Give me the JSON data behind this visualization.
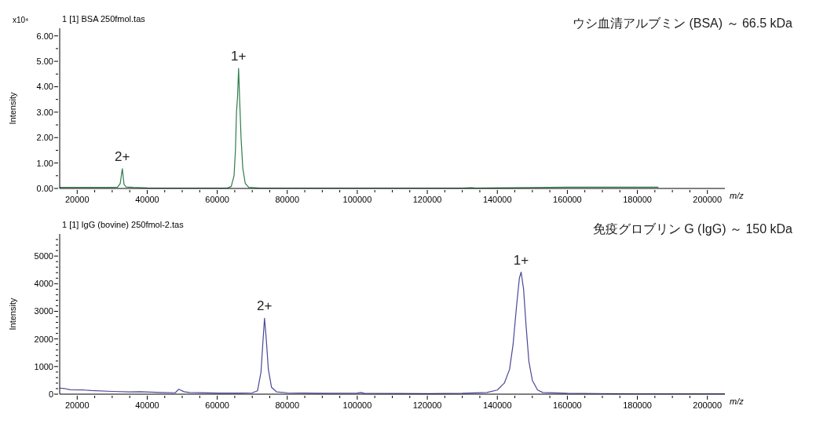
{
  "chart_data": [
    {
      "type": "line",
      "title": "1 [1] BSA 250fmol.tas",
      "xlabel": "m/z",
      "ylabel": "Intensity",
      "annotations": [
        "x10⁴",
        "ウシ血清アルブミン (BSA) ～ 66.5 kDa",
        {
          "text": "2+",
          "x": 32900,
          "y": 0.78
        },
        {
          "text": "1+",
          "x": 66100,
          "y": 4.72
        }
      ],
      "xlim": [
        15000,
        205000
      ],
      "ylim": [
        0,
        6.3
      ],
      "xticks": [
        20000,
        {
          "value": 25000,
          "label": null
        },
        {
          "value": 30000,
          "label": null
        },
        {
          "value": 35000,
          "label": null
        },
        40000,
        {
          "value": 45000,
          "label": null
        },
        {
          "value": 50000,
          "label": null
        },
        {
          "value": 55000,
          "label": null
        },
        60000,
        {
          "value": 65000,
          "label": null
        },
        {
          "value": 70000,
          "label": null
        },
        {
          "value": 75000,
          "label": null
        },
        80000,
        {
          "value": 85000,
          "label": null
        },
        {
          "value": 90000,
          "label": null
        },
        {
          "value": 95000,
          "label": null
        },
        100000,
        {
          "value": 105000,
          "label": null
        },
        {
          "value": 110000,
          "label": null
        },
        {
          "value": 115000,
          "label": null
        },
        120000,
        {
          "value": 125000,
          "label": null
        },
        {
          "value": 130000,
          "label": null
        },
        {
          "value": 135000,
          "label": null
        },
        140000,
        {
          "value": 145000,
          "label": null
        },
        {
          "value": 150000,
          "label": null
        },
        {
          "value": 155000,
          "label": null
        },
        160000,
        {
          "value": 165000,
          "label": null
        },
        {
          "value": 170000,
          "label": null
        },
        {
          "value": 175000,
          "label": null
        },
        180000,
        {
          "value": 185000,
          "label": null
        },
        {
          "value": 190000,
          "label": null
        },
        {
          "value": 195000,
          "label": null
        },
        200000
      ],
      "yticks": [
        {
          "value": 0,
          "label": "0.00"
        },
        {
          "value": 0.5,
          "label": null
        },
        {
          "value": 1,
          "label": "1.00"
        },
        {
          "value": 1.5,
          "label": null
        },
        {
          "value": 2,
          "label": "2.00"
        },
        {
          "value": 2.5,
          "label": null
        },
        {
          "value": 3,
          "label": "3.00"
        },
        {
          "value": 3.5,
          "label": null
        },
        {
          "value": 4,
          "label": "4.00"
        },
        {
          "value": 4.5,
          "label": null
        },
        {
          "value": 5,
          "label": "5.00"
        },
        {
          "value": 5.5,
          "label": null
        },
        {
          "value": 6,
          "label": "6.00"
        }
      ],
      "marker": "none",
      "line_style": "solid",
      "series": [
        {
          "color": "#2e7d4a",
          "x": [
            15000,
            20000,
            25000,
            30000,
            31500,
            32300,
            32700,
            32900,
            33100,
            33400,
            34000,
            36000,
            40000,
            50000,
            60000,
            63000,
            64000,
            64800,
            65200,
            65500,
            65800,
            66100,
            66400,
            66800,
            67300,
            68000,
            69000,
            72000,
            100000,
            130000,
            132500,
            134000,
            160000,
            186000
          ],
          "values": [
            0.04,
            0.04,
            0.04,
            0.04,
            0.05,
            0.2,
            0.6,
            0.78,
            0.5,
            0.15,
            0.06,
            0.04,
            0.02,
            0.01,
            0.01,
            0.02,
            0.08,
            0.5,
            1.5,
            3.0,
            3.6,
            4.72,
            3.5,
            2.0,
            0.8,
            0.2,
            0.04,
            0.01,
            0.01,
            0.01,
            0.03,
            0.01,
            0.05,
            0.05
          ]
        }
      ]
    },
    {
      "type": "line",
      "title": "1 [1] IgG (bovine) 250fmol-2.tas",
      "xlabel": "m/z",
      "ylabel": "Intensity",
      "annotations": [
        "免疫グロブリン G (IgG) ～ 150 kDa",
        {
          "text": "2+",
          "x": 73500,
          "y": 2750
        },
        {
          "text": "1+",
          "x": 146800,
          "y": 4420
        }
      ],
      "xlim": [
        15000,
        205000
      ],
      "ylim": [
        0,
        5800
      ],
      "xticks": [
        20000,
        {
          "value": 25000,
          "label": null
        },
        {
          "value": 30000,
          "label": null
        },
        {
          "value": 35000,
          "label": null
        },
        40000,
        {
          "value": 45000,
          "label": null
        },
        {
          "value": 50000,
          "label": null
        },
        {
          "value": 55000,
          "label": null
        },
        60000,
        {
          "value": 65000,
          "label": null
        },
        {
          "value": 70000,
          "label": null
        },
        {
          "value": 75000,
          "label": null
        },
        80000,
        {
          "value": 85000,
          "label": null
        },
        {
          "value": 90000,
          "label": null
        },
        {
          "value": 95000,
          "label": null
        },
        100000,
        {
          "value": 105000,
          "label": null
        },
        {
          "value": 110000,
          "label": null
        },
        {
          "value": 115000,
          "label": null
        },
        120000,
        {
          "value": 125000,
          "label": null
        },
        {
          "value": 130000,
          "label": null
        },
        {
          "value": 135000,
          "label": null
        },
        140000,
        {
          "value": 145000,
          "label": null
        },
        {
          "value": 150000,
          "label": null
        },
        {
          "value": 155000,
          "label": null
        },
        160000,
        {
          "value": 165000,
          "label": null
        },
        {
          "value": 170000,
          "label": null
        },
        {
          "value": 175000,
          "label": null
        },
        180000,
        {
          "value": 185000,
          "label": null
        },
        {
          "value": 190000,
          "label": null
        },
        {
          "value": 195000,
          "label": null
        },
        200000
      ],
      "yticks": [
        0,
        {
          "value": 200,
          "label": null
        },
        {
          "value": 400,
          "label": null
        },
        {
          "value": 600,
          "label": null
        },
        {
          "value": 800,
          "label": null
        },
        1000,
        {
          "value": 1200,
          "label": null
        },
        {
          "value": 1400,
          "label": null
        },
        {
          "value": 1600,
          "label": null
        },
        {
          "value": 1800,
          "label": null
        },
        2000,
        {
          "value": 2200,
          "label": null
        },
        {
          "value": 2400,
          "label": null
        },
        {
          "value": 2600,
          "label": null
        },
        {
          "value": 2800,
          "label": null
        },
        3000,
        {
          "value": 3200,
          "label": null
        },
        {
          "value": 3400,
          "label": null
        },
        {
          "value": 3600,
          "label": null
        },
        {
          "value": 3800,
          "label": null
        },
        4000,
        {
          "value": 4200,
          "label": null
        },
        {
          "value": 4400,
          "label": null
        },
        {
          "value": 4600,
          "label": null
        },
        {
          "value": 4800,
          "label": null
        },
        5000,
        {
          "value": 5200,
          "label": null
        },
        {
          "value": 5400,
          "label": null
        },
        {
          "value": 5600,
          "label": null
        }
      ],
      "marker": "none",
      "line_style": "solid",
      "series": [
        {
          "color": "#4b4896",
          "x": [
            15000,
            16500,
            18000,
            22000,
            24000,
            30000,
            35000,
            38000,
            44000,
            48000,
            49000,
            50500,
            52000,
            60000,
            66000,
            70000,
            71500,
            72500,
            73000,
            73500,
            74000,
            74600,
            75500,
            77000,
            80000,
            90000,
            100000,
            101000,
            102000,
            120000,
            130000,
            137000,
            140000,
            142000,
            143500,
            144500,
            145500,
            146300,
            146800,
            147500,
            148200,
            149000,
            150000,
            151500,
            153000,
            160000,
            180000,
            205000
          ],
          "values": [
            220,
            200,
            160,
            150,
            130,
            100,
            80,
            90,
            60,
            50,
            180,
            90,
            60,
            40,
            40,
            50,
            120,
            800,
            1800,
            2750,
            2000,
            900,
            250,
            80,
            50,
            30,
            40,
            60,
            30,
            20,
            30,
            60,
            150,
            400,
            900,
            1800,
            3200,
            4200,
            4420,
            3800,
            2500,
            1200,
            500,
            150,
            60,
            30,
            10,
            10
          ]
        }
      ]
    }
  ]
}
